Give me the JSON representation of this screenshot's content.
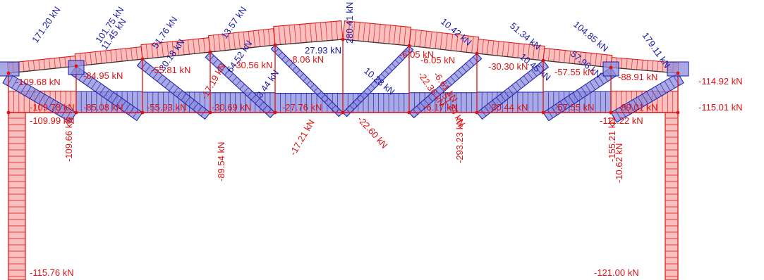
{
  "colors": {
    "tension": "#1a1aa8",
    "tension_fill": "#8c8cdc",
    "compression": "#dd1111",
    "compression_fill": "#f7aaaa",
    "structure": "#333333",
    "node": "#dd1111"
  },
  "unit": "kN",
  "labels": [
    {
      "id": "d1",
      "text": "171.20 kN",
      "sign": "tension"
    },
    {
      "id": "d2",
      "text": "101.75 kN",
      "sign": "tension"
    },
    {
      "id": "d3",
      "text": "11.45 kN",
      "sign": "tension"
    },
    {
      "id": "d4",
      "text": "51.76 kN",
      "sign": "tension"
    },
    {
      "id": "d5",
      "text": "30.18 kN",
      "sign": "tension"
    },
    {
      "id": "d6",
      "text": "13.57 kN",
      "sign": "tension"
    },
    {
      "id": "d7",
      "text": "64.52 kN",
      "sign": "tension"
    },
    {
      "id": "d8",
      "text": "27.93 kN",
      "sign": "tension"
    },
    {
      "id": "d9",
      "text": "3.44 kN",
      "sign": "tension"
    },
    {
      "id": "d10",
      "text": "280.41 kN",
      "sign": "tension"
    },
    {
      "id": "d11",
      "text": "10.28 kN",
      "sign": "tension"
    },
    {
      "id": "d12",
      "text": "10.42 kN",
      "sign": "tension"
    },
    {
      "id": "d13",
      "text": "51.34 kN",
      "sign": "tension"
    },
    {
      "id": "d14",
      "text": "104.85 kN",
      "sign": "tension"
    },
    {
      "id": "d15",
      "text": "179.11 kN",
      "sign": "tension"
    },
    {
      "id": "d16",
      "text": "10.45 kN",
      "sign": "tension"
    },
    {
      "id": "d17",
      "text": "57.96 kN",
      "sign": "tension"
    },
    {
      "id": "t1",
      "text": "-109.68 kN",
      "sign": "compression"
    },
    {
      "id": "t2",
      "text": "-84.95 kN",
      "sign": "compression"
    },
    {
      "id": "t3",
      "text": "-55.81 kN",
      "sign": "compression"
    },
    {
      "id": "t4",
      "text": "-30.56 kN",
      "sign": "compression"
    },
    {
      "id": "t5",
      "text": "-8.06 kN",
      "sign": "compression"
    },
    {
      "id": "t6",
      "text": "-6.05 kN",
      "sign": "compression"
    },
    {
      "id": "t7",
      "text": "-30.30 kN",
      "sign": "compression"
    },
    {
      "id": "t8",
      "text": "-57.55 kN",
      "sign": "compression"
    },
    {
      "id": "t9",
      "text": "-88.91 kN",
      "sign": "compression"
    },
    {
      "id": "t10",
      "text": "-114.92 kN",
      "sign": "compression"
    },
    {
      "id": "b1",
      "text": "-109.78 kN",
      "sign": "compression"
    },
    {
      "id": "b2",
      "text": "-85.08 kN",
      "sign": "compression"
    },
    {
      "id": "b3",
      "text": "-55.93 kN",
      "sign": "compression"
    },
    {
      "id": "b4",
      "text": "-30.69 kN",
      "sign": "compression"
    },
    {
      "id": "b5",
      "text": "-27.76 kN",
      "sign": "compression"
    },
    {
      "id": "b6",
      "text": "-6.17 kN",
      "sign": "compression"
    },
    {
      "id": "b7",
      "text": "-30.44 kN",
      "sign": "compression"
    },
    {
      "id": "b8",
      "text": "-57.55 kN",
      "sign": "compression"
    },
    {
      "id": "b9",
      "text": "-89.01 kN",
      "sign": "compression"
    },
    {
      "id": "b10",
      "text": "-115.01 kN",
      "sign": "compression"
    },
    {
      "id": "c1",
      "text": "-109.99 kN",
      "sign": "compression"
    },
    {
      "id": "c2",
      "text": "-111.22 kN",
      "sign": "compression"
    },
    {
      "id": "v1",
      "text": "-109.66 kN",
      "sign": "compression"
    },
    {
      "id": "v2",
      "text": "-89.54 kN",
      "sign": "compression"
    },
    {
      "id": "v3",
      "text": "-17.21 kN",
      "sign": "compression"
    },
    {
      "id": "v4",
      "text": "-22.60 kN",
      "sign": "compression"
    },
    {
      "id": "v5",
      "text": "-293.23 kN",
      "sign": "compression"
    },
    {
      "id": "v6",
      "text": "-155.21 kN",
      "sign": "compression"
    },
    {
      "id": "v7",
      "text": "-10.62 kN",
      "sign": "compression"
    },
    {
      "id": "v8",
      "text": "-22.36 kN",
      "sign": "compression"
    },
    {
      "id": "v9",
      "text": "-6.61 kN",
      "sign": "compression"
    },
    {
      "id": "v10",
      "text": "-51.24 kN",
      "sign": "compression"
    },
    {
      "id": "v11",
      "text": "-17.19 kN",
      "sign": "compression"
    },
    {
      "id": "v12",
      "text": "-6.05 kN",
      "sign": "compression"
    },
    {
      "id": "col1",
      "text": "-115.76 kN",
      "sign": "compression"
    },
    {
      "id": "col2",
      "text": "-121.00 kN",
      "sign": "compression"
    }
  ]
}
